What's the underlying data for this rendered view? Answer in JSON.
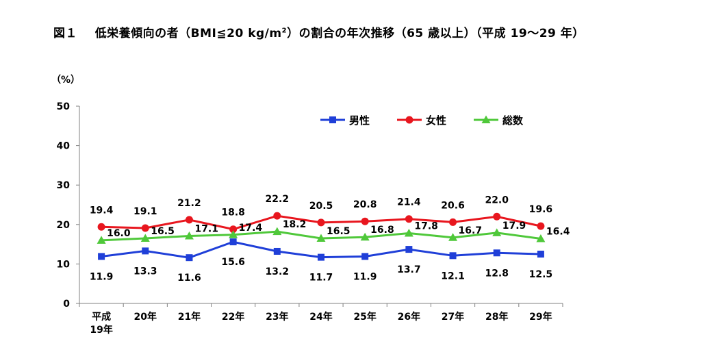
{
  "figure": {
    "title_prefix": "図１",
    "title_main": "低栄養傾向の者（BMI≦20 kg/m",
    "title_sup": "2",
    "title_suffix": "）の割合の年次推移（65 歳以上）（平成 19〜29 年）"
  },
  "chart_data": {
    "type": "line",
    "ylabel": "（%）",
    "ylim": [
      0,
      50
    ],
    "yticks": [
      0,
      10,
      20,
      30,
      40,
      50
    ],
    "categories": [
      [
        "平成",
        "19年"
      ],
      [
        "20年"
      ],
      [
        "21年"
      ],
      [
        "22年"
      ],
      [
        "23年"
      ],
      [
        "24年"
      ],
      [
        "25年"
      ],
      [
        "26年"
      ],
      [
        "27年"
      ],
      [
        "28年"
      ],
      [
        "29年"
      ]
    ],
    "legend_position": "top-right",
    "series": [
      {
        "name": "男性",
        "color": "#1f3fd8",
        "marker": "square",
        "values": [
          11.9,
          13.3,
          11.6,
          15.6,
          13.2,
          11.7,
          11.9,
          13.7,
          12.1,
          12.8,
          12.5
        ],
        "labels": [
          "11.9",
          "13.3",
          "11.6",
          "15.6",
          "13.2",
          "11.7",
          "11.9",
          "13.7",
          "12.1",
          "12.8",
          "12.5"
        ]
      },
      {
        "name": "女性",
        "color": "#e8161e",
        "marker": "circle",
        "values": [
          19.4,
          19.1,
          21.2,
          18.8,
          22.2,
          20.5,
          20.8,
          21.4,
          20.6,
          22.0,
          19.6
        ],
        "labels": [
          "19.4",
          "19.1",
          "21.2",
          "18.8",
          "22.2",
          "20.5",
          "20.8",
          "21.4",
          "20.6",
          "22.0",
          "19.6"
        ]
      },
      {
        "name": "総数",
        "color": "#4fc83a",
        "marker": "triangle",
        "values": [
          16.0,
          16.5,
          17.1,
          17.4,
          18.2,
          16.5,
          16.8,
          17.8,
          16.7,
          17.9,
          16.4
        ],
        "labels": [
          "16.0",
          "16.5",
          "17.1",
          "17.4",
          "18.2",
          "16.5",
          "16.8",
          "17.8",
          "16.7",
          "17.9",
          "16.4"
        ]
      }
    ]
  }
}
